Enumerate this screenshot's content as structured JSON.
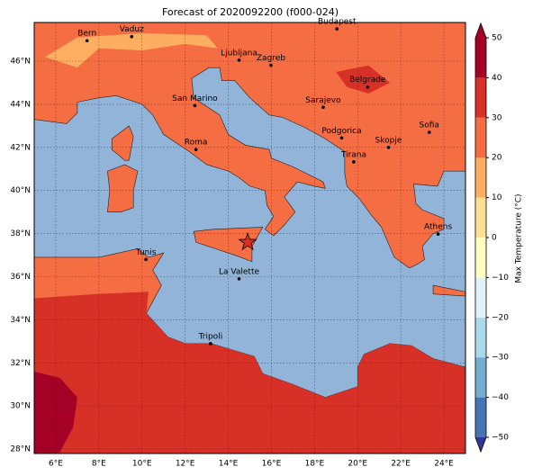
{
  "title": "Forecast of 2020092200 (f000-024)",
  "x_labels": [
    "6°E",
    "8°E",
    "10°E",
    "12°E",
    "14°E",
    "16°E",
    "18°E",
    "20°E",
    "22°E",
    "24°E"
  ],
  "y_labels": [
    "28°N",
    "30°N",
    "32°N",
    "34°N",
    "36°N",
    "38°N",
    "40°N",
    "42°N",
    "44°N",
    "46°N"
  ],
  "cities": [
    "Bern",
    "Vaduz",
    "Budapest",
    "Ljubljana",
    "Zagreb",
    "Belgrade",
    "San Marino",
    "Sarajevo",
    "Sofia",
    "Roma",
    "Podgorica",
    "Skopje",
    "Tirana",
    "Athens",
    "Tunis",
    "La Valette",
    "Tripoli"
  ],
  "colorbar": {
    "label": "Max Temperature (°C)",
    "lim": [
      -50,
      50
    ],
    "ticks": [
      {
        "value": -50,
        "label": "−50"
      },
      {
        "value": -40,
        "label": "−40"
      },
      {
        "value": -30,
        "label": "−30"
      },
      {
        "value": -20,
        "label": "−20"
      },
      {
        "value": -10,
        "label": "−10"
      },
      0,
      10,
      20,
      30,
      40,
      50
    ],
    "colors": [
      "#313695",
      "#4575b4",
      "#74add1",
      "#abd9e9",
      "#e0f3f8",
      "#ffffbf",
      "#fee090",
      "#fdae61",
      "#f46d43",
      "#d73027",
      "#a50026"
    ]
  }
}
